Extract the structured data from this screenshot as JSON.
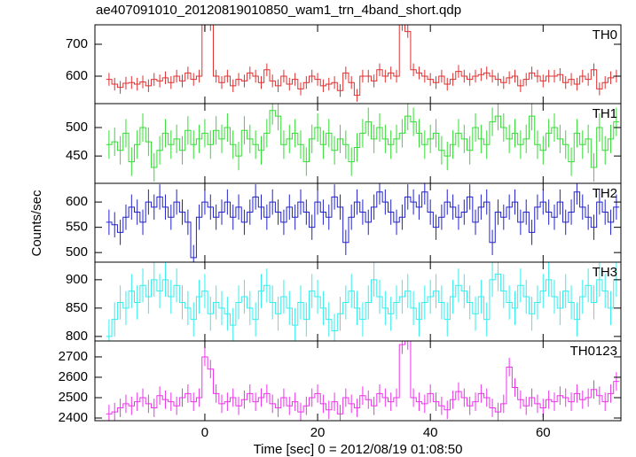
{
  "title": "ae407091010_20120819010850_wam1_trn_4band_short.qdp",
  "ylabel": "Counts/sec",
  "chart_data": [
    {
      "type": "step",
      "label": "TH0",
      "color": "#e03030",
      "error": 20,
      "xlim": [
        -19.5,
        73.8
      ],
      "ylim": [
        514,
        761
      ],
      "yticks": [
        600,
        700
      ],
      "x": [
        -17,
        -16,
        -15,
        -14,
        -13,
        -12,
        -11,
        -10,
        -9,
        -8,
        -7,
        -6,
        -5,
        -4,
        -3,
        -2,
        -1,
        0,
        1,
        2,
        3,
        4,
        5,
        6,
        7,
        8,
        9,
        10,
        11,
        12,
        13,
        14,
        15,
        16,
        17,
        18,
        19,
        20,
        21,
        22,
        23,
        24,
        25,
        26,
        27,
        28,
        29,
        30,
        31,
        32,
        33,
        34,
        35,
        36,
        37,
        38,
        39,
        40,
        41,
        42,
        43,
        44,
        45,
        46,
        47,
        48,
        49,
        50,
        51,
        52,
        53,
        54,
        55,
        56,
        57,
        58,
        59,
        60,
        61,
        62,
        63,
        64,
        65,
        66,
        67,
        68,
        69,
        70,
        71,
        72,
        73
      ],
      "values": [
        590,
        575,
        565,
        578,
        580,
        575,
        582,
        570,
        590,
        585,
        595,
        580,
        600,
        585,
        610,
        590,
        600,
        762,
        762,
        600,
        580,
        600,
        570,
        590,
        585,
        610,
        600,
        580,
        620,
        585,
        570,
        600,
        575,
        590,
        560,
        580,
        600,
        590,
        570,
        575,
        580,
        555,
        610,
        580,
        540,
        600,
        600,
        585,
        620,
        600,
        610,
        600,
        762,
        740,
        620,
        610,
        600,
        590,
        580,
        600,
        575,
        590,
        615,
        600,
        590,
        600,
        605,
        610,
        600,
        590,
        580,
        595,
        600,
        570,
        590,
        610,
        600,
        585,
        600,
        600,
        605,
        580,
        590,
        575,
        600,
        590,
        620,
        560,
        580,
        595,
        600
      ]
    },
    {
      "type": "step",
      "label": "TH1",
      "color": "#33dd33",
      "error": 25,
      "xlim": [
        -19.5,
        73.8
      ],
      "ylim": [
        402,
        542
      ],
      "yticks": [
        450,
        500
      ],
      "x": [
        -17,
        -16,
        -15,
        -14,
        -13,
        -12,
        -11,
        -10,
        -9,
        -8,
        -7,
        -6,
        -5,
        -4,
        -3,
        -2,
        -1,
        0,
        1,
        2,
        3,
        4,
        5,
        6,
        7,
        8,
        9,
        10,
        11,
        12,
        13,
        14,
        15,
        16,
        17,
        18,
        19,
        20,
        21,
        22,
        23,
        24,
        25,
        26,
        27,
        28,
        29,
        30,
        31,
        32,
        33,
        34,
        35,
        36,
        37,
        38,
        39,
        40,
        41,
        42,
        43,
        44,
        45,
        46,
        47,
        48,
        49,
        50,
        51,
        52,
        53,
        54,
        55,
        56,
        57,
        58,
        59,
        60,
        61,
        62,
        63,
        64,
        65,
        66,
        67,
        68,
        69,
        70,
        71,
        72,
        73
      ],
      "values": [
        470,
        475,
        460,
        490,
        440,
        470,
        500,
        475,
        430,
        460,
        490,
        470,
        480,
        460,
        495,
        470,
        480,
        490,
        470,
        495,
        480,
        500,
        470,
        450,
        495,
        480,
        470,
        460,
        490,
        530,
        520,
        470,
        480,
        490,
        470,
        440,
        480,
        500,
        470,
        490,
        460,
        480,
        470,
        440,
        465,
        490,
        510,
        480,
        500,
        480,
        470,
        480,
        490,
        520,
        510,
        490,
        470,
        480,
        490,
        460,
        450,
        470,
        490,
        480,
        460,
        500,
        480,
        470,
        510,
        520,
        500,
        480,
        490,
        470,
        480,
        520,
        470,
        460,
        490,
        500,
        480,
        470,
        440,
        490,
        470,
        480,
        430,
        500,
        460,
        480,
        510
      ]
    },
    {
      "type": "step",
      "label": "TH2",
      "color": "#2222cc",
      "error": 25,
      "xlim": [
        -19.5,
        73.8
      ],
      "ylim": [
        481,
        637
      ],
      "yticks": [
        500,
        550,
        600
      ],
      "x": [
        -17,
        -16,
        -15,
        -14,
        -13,
        -12,
        -11,
        -10,
        -9,
        -8,
        -7,
        -6,
        -5,
        -4,
        -3,
        -2,
        -1,
        0,
        1,
        2,
        3,
        4,
        5,
        6,
        7,
        8,
        9,
        10,
        11,
        12,
        13,
        14,
        15,
        16,
        17,
        18,
        19,
        20,
        21,
        22,
        23,
        24,
        25,
        26,
        27,
        28,
        29,
        30,
        31,
        32,
        33,
        34,
        35,
        36,
        37,
        38,
        39,
        40,
        41,
        42,
        43,
        44,
        45,
        46,
        47,
        48,
        49,
        50,
        51,
        52,
        53,
        54,
        55,
        56,
        57,
        58,
        59,
        60,
        61,
        62,
        63,
        64,
        65,
        66,
        67,
        68,
        69,
        70,
        71,
        72,
        73
      ],
      "values": [
        560,
        555,
        540,
        570,
        590,
        580,
        560,
        600,
        590,
        610,
        590,
        570,
        600,
        580,
        560,
        490,
        570,
        600,
        590,
        570,
        580,
        600,
        570,
        590,
        560,
        580,
        610,
        590,
        570,
        600,
        580,
        560,
        590,
        570,
        600,
        580,
        550,
        600,
        580,
        570,
        610,
        590,
        520,
        570,
        600,
        580,
        560,
        590,
        620,
        600,
        580,
        560,
        570,
        610,
        600,
        590,
        620,
        580,
        550,
        570,
        600,
        590,
        570,
        580,
        610,
        560,
        590,
        600,
        520,
        580,
        570,
        590,
        600,
        560,
        580,
        540,
        590,
        600,
        580,
        570,
        600,
        560,
        580,
        620,
        590,
        570,
        550,
        600,
        580,
        560,
        590
      ]
    },
    {
      "type": "step",
      "label": "TH3",
      "color": "#33eeee",
      "error": 30,
      "xlim": [
        -19.5,
        73.8
      ],
      "ylim": [
        792,
        931
      ],
      "yticks": [
        800,
        850,
        900
      ],
      "x": [
        -17,
        -16,
        -15,
        -14,
        -13,
        -12,
        -11,
        -10,
        -9,
        -8,
        -7,
        -6,
        -5,
        -4,
        -3,
        -2,
        -1,
        0,
        1,
        2,
        3,
        4,
        5,
        6,
        7,
        8,
        9,
        10,
        11,
        12,
        13,
        14,
        15,
        16,
        17,
        18,
        19,
        20,
        21,
        22,
        23,
        24,
        25,
        26,
        27,
        28,
        29,
        30,
        31,
        32,
        33,
        34,
        35,
        36,
        37,
        38,
        39,
        40,
        41,
        42,
        43,
        44,
        45,
        46,
        47,
        48,
        49,
        50,
        51,
        52,
        53,
        54,
        55,
        56,
        57,
        58,
        59,
        60,
        61,
        62,
        63,
        64,
        65,
        66,
        67,
        68,
        69,
        70,
        71,
        72,
        73
      ],
      "values": [
        800,
        830,
        860,
        850,
        880,
        860,
        890,
        870,
        900,
        880,
        900,
        870,
        890,
        860,
        850,
        830,
        870,
        880,
        840,
        860,
        850,
        840,
        820,
        860,
        870,
        850,
        830,
        880,
        890,
        860,
        840,
        870,
        850,
        820,
        860,
        830,
        880,
        870,
        850,
        830,
        810,
        840,
        860,
        880,
        850,
        830,
        860,
        900,
        870,
        850,
        840,
        860,
        870,
        880,
        850,
        830,
        860,
        870,
        880,
        860,
        830,
        870,
        890,
        880,
        860,
        840,
        870,
        830,
        900,
        910,
        880,
        860,
        850,
        890,
        870,
        840,
        860,
        880,
        900,
        870,
        850,
        880,
        860,
        830,
        870,
        890,
        860,
        900,
        880,
        850,
        900
      ]
    },
    {
      "type": "step",
      "label": "TH0123",
      "color": "#ee33ee",
      "error": 45,
      "xlim": [
        -19.5,
        73.8
      ],
      "ylim": [
        2387,
        2778
      ],
      "yticks": [
        2400,
        2500,
        2600,
        2700
      ],
      "xticks": [
        0,
        20,
        40,
        60
      ],
      "xlabel": "Time [sec] 0 = 2012/08/19 01:08:50",
      "x": [
        -17,
        -16,
        -15,
        -14,
        -13,
        -12,
        -11,
        -10,
        -9,
        -8,
        -7,
        -6,
        -5,
        -4,
        -3,
        -2,
        -1,
        0,
        1,
        2,
        3,
        4,
        5,
        6,
        7,
        8,
        9,
        10,
        11,
        12,
        13,
        14,
        15,
        16,
        17,
        18,
        19,
        20,
        21,
        22,
        23,
        24,
        25,
        26,
        27,
        28,
        29,
        30,
        31,
        32,
        33,
        34,
        35,
        36,
        37,
        38,
        39,
        40,
        41,
        42,
        43,
        44,
        45,
        46,
        47,
        48,
        49,
        50,
        51,
        52,
        53,
        54,
        55,
        56,
        57,
        58,
        59,
        60,
        61,
        62,
        63,
        64,
        65,
        66,
        67,
        68,
        69,
        70,
        71,
        72,
        73
      ],
      "values": [
        2420,
        2430,
        2450,
        2470,
        2460,
        2480,
        2500,
        2470,
        2450,
        2510,
        2490,
        2480,
        2460,
        2500,
        2520,
        2480,
        2500,
        2700,
        2640,
        2520,
        2470,
        2480,
        2500,
        2460,
        2490,
        2520,
        2480,
        2500,
        2520,
        2470,
        2450,
        2500,
        2460,
        2480,
        2430,
        2460,
        2500,
        2520,
        2470,
        2440,
        2480,
        2420,
        2500,
        2470,
        2450,
        2510,
        2490,
        2460,
        2520,
        2500,
        2480,
        2500,
        2760,
        2780,
        2500,
        2480,
        2470,
        2520,
        2480,
        2460,
        2440,
        2490,
        2530,
        2500,
        2460,
        2480,
        2520,
        2500,
        2450,
        2430,
        2470,
        2650,
        2550,
        2490,
        2460,
        2500,
        2470,
        2450,
        2490,
        2480,
        2510,
        2500,
        2480,
        2520,
        2490,
        2500,
        2540,
        2510,
        2480,
        2520,
        2580
      ]
    }
  ]
}
